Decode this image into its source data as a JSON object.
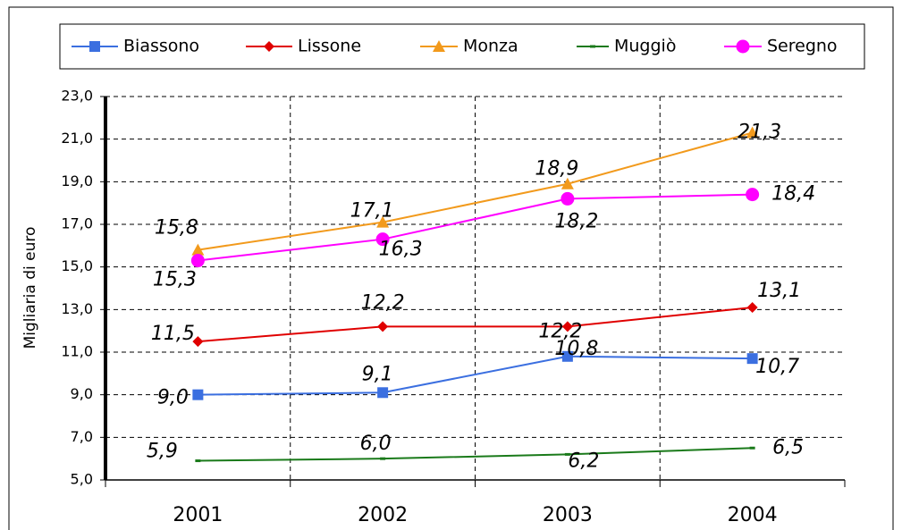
{
  "chart_data": {
    "type": "line",
    "ylabel": "Migliaria di euro",
    "categories": [
      "2001",
      "2002",
      "2003",
      "2004"
    ],
    "series": [
      {
        "name": "Biassono",
        "color": "#3b6fe0",
        "marker": "square",
        "values": [
          9.0,
          9.1,
          10.8,
          10.7
        ],
        "value_labels": [
          "9,0",
          "9,1",
          "10,8",
          "10,7"
        ]
      },
      {
        "name": "Lissone",
        "color": "#e00000",
        "marker": "diamond",
        "values": [
          11.5,
          12.2,
          12.2,
          13.1
        ],
        "value_labels": [
          "11,5",
          "12,2",
          "12,2",
          "13,1"
        ]
      },
      {
        "name": "Monza",
        "color": "#f29a1c",
        "marker": "triangle",
        "values": [
          15.8,
          17.1,
          18.9,
          21.3
        ],
        "value_labels": [
          "15,8",
          "17,1",
          "18,9",
          "21,3"
        ]
      },
      {
        "name": "Muggiò",
        "color": "#1a7a1a",
        "marker": "dash",
        "values": [
          5.9,
          6.0,
          6.2,
          6.5
        ],
        "value_labels": [
          "5,9",
          "6,0",
          "6,2",
          "6,5"
        ]
      },
      {
        "name": "Seregno",
        "color": "#ff00ff",
        "marker": "circle",
        "values": [
          15.3,
          16.3,
          18.2,
          18.4
        ],
        "value_labels": [
          "15,3",
          "16,3",
          "18,2",
          "18,4"
        ]
      }
    ],
    "ylim": [
      5,
      23
    ],
    "yticks": [
      {
        "value": 5,
        "label": "5,0"
      },
      {
        "value": 7,
        "label": "7,0"
      },
      {
        "value": 9,
        "label": "9,0"
      },
      {
        "value": 11,
        "label": "11,0"
      },
      {
        "value": 13,
        "label": "13,0"
      },
      {
        "value": 15,
        "label": "15,0"
      },
      {
        "value": 17,
        "label": "17,0"
      },
      {
        "value": 19,
        "label": "19,0"
      },
      {
        "value": 21,
        "label": "21,0"
      },
      {
        "value": 23,
        "label": "23,0"
      }
    ],
    "grid": true,
    "legend": "top"
  }
}
